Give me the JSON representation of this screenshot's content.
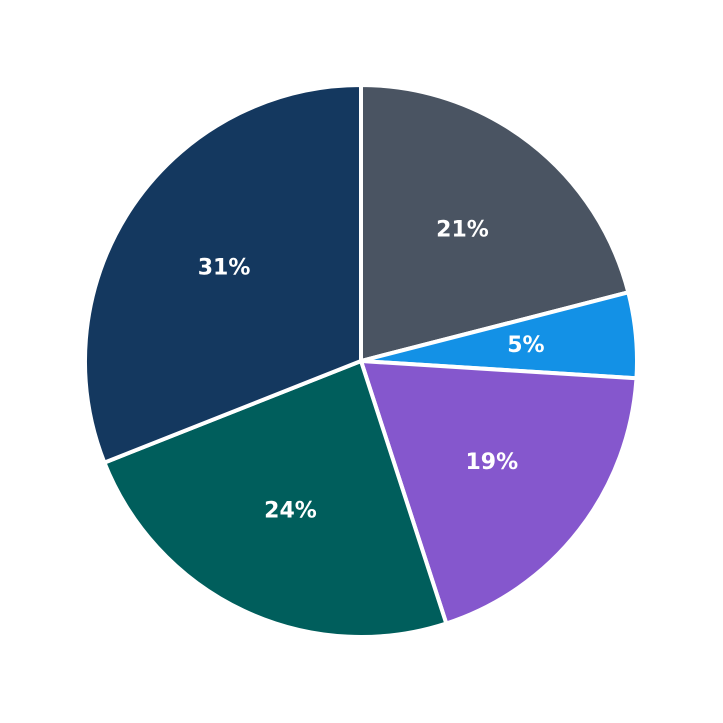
{
  "chart_data": {
    "type": "pie",
    "title": "",
    "start_angle": "12 o'clock",
    "direction": "clockwise",
    "legend": "none",
    "slices": [
      {
        "label": "21%",
        "value": 21,
        "color": "#4a5462"
      },
      {
        "label": "5%",
        "value": 5,
        "color": "#1391e6"
      },
      {
        "label": "19%",
        "value": 19,
        "color": "#8557cd"
      },
      {
        "label": "24%",
        "value": 24,
        "color": "#005e5c"
      },
      {
        "label": "31%",
        "value": 31,
        "color": "#14385f"
      }
    ]
  }
}
